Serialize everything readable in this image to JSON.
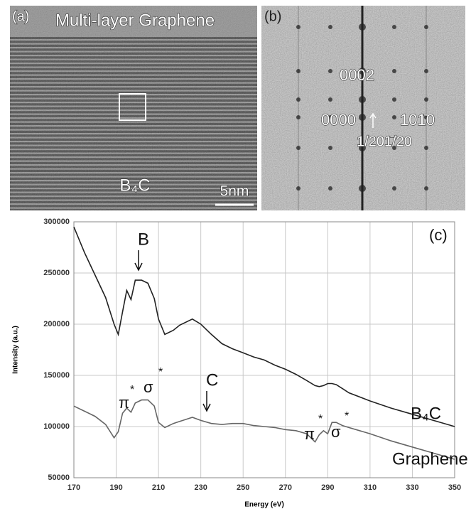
{
  "panels": [
    {
      "label": "(a)",
      "texts": [
        "Multi-layer Graphene",
        "B₄C",
        "5nm"
      ]
    },
    {
      "label": "(b)",
      "texts": [
        "0002",
        "0000",
        "101̄0",
        "1/201̄/20"
      ]
    }
  ],
  "chart_data": {
    "type": "line",
    "x_label": "Energy (eV)",
    "y_label": "Intensity (a.u.)",
    "x": [
      170,
      175,
      180,
      185,
      189,
      191,
      193,
      195,
      197,
      199,
      202,
      205,
      208,
      210,
      213,
      217,
      220,
      226,
      230,
      235,
      240,
      245,
      250,
      255,
      260,
      265,
      270,
      275,
      280,
      284,
      286,
      288,
      290,
      292,
      294,
      297,
      300,
      310,
      320,
      330,
      340,
      350
    ],
    "series": [
      {
        "name": "B₄C",
        "color": "#222222",
        "values": [
          295000,
          270000,
          248000,
          226000,
          200000,
          190000,
          212000,
          233000,
          224000,
          243000,
          243000,
          240000,
          225000,
          205000,
          190000,
          194000,
          199000,
          205000,
          200000,
          190000,
          181000,
          176000,
          172000,
          168000,
          165000,
          160000,
          156000,
          151000,
          145000,
          140000,
          139000,
          140000,
          142000,
          142000,
          141000,
          137000,
          133000,
          125000,
          118000,
          112000,
          106000,
          100000
        ]
      },
      {
        "name": "Graphene",
        "color": "#666666",
        "values": [
          120000,
          115000,
          110000,
          102000,
          89000,
          95000,
          113000,
          118000,
          114000,
          123000,
          126000,
          126000,
          120000,
          104000,
          99000,
          103000,
          105000,
          109000,
          106000,
          103000,
          102000,
          103000,
          103000,
          101000,
          100000,
          99000,
          97000,
          96000,
          93000,
          85000,
          92000,
          96000,
          93000,
          104000,
          104000,
          101000,
          99000,
          93000,
          86000,
          80000,
          74000,
          68000
        ]
      }
    ],
    "annotations": [
      "(c)",
      "B",
      "C",
      "π",
      "*",
      "σ",
      "*",
      "π",
      "*",
      "σ",
      "*"
    ],
    "xlim": [
      170,
      350
    ],
    "xticks": [
      170,
      190,
      210,
      230,
      250,
      270,
      290,
      310,
      330,
      350
    ],
    "ylim": [
      50000,
      300000
    ],
    "yticks": [
      50000,
      100000,
      150000,
      200000,
      250000,
      300000
    ],
    "grid": true
  }
}
